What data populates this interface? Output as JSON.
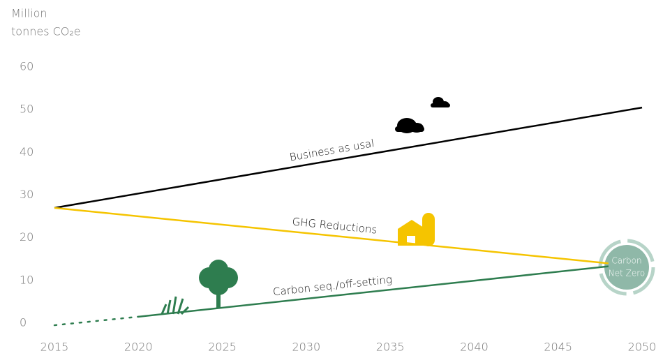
{
  "chart_data": {
    "type": "line",
    "y_axis_label": [
      "Million",
      "tonnes CO₂e"
    ],
    "xlim": [
      2015,
      2050
    ],
    "xticks": [
      2015,
      2020,
      2025,
      2030,
      2035,
      2040,
      2045,
      2050
    ],
    "ylim": [
      0,
      60
    ],
    "yticks": [
      0,
      10,
      20,
      30,
      40,
      50,
      60
    ],
    "series": [
      {
        "name": "Business as usal",
        "color": "#000000",
        "x": [
          2015,
          2050
        ],
        "values": [
          27,
          50.5
        ],
        "line_style": [
          "solid"
        ]
      },
      {
        "name": "GHG Reductions",
        "color": "#f5c400",
        "x": [
          2015,
          2048
        ],
        "values": [
          27,
          14
        ],
        "line_style": [
          "solid"
        ]
      },
      {
        "name": "Carbon seq./off-setting",
        "color": "#2e7d4f",
        "x": [
          2015,
          2020,
          2048
        ],
        "values": [
          -0.5,
          1.5,
          13.3
        ],
        "line_style": [
          "dotted",
          "solid"
        ]
      }
    ],
    "annotations": [
      "Carbon",
      "Net Zero"
    ]
  }
}
